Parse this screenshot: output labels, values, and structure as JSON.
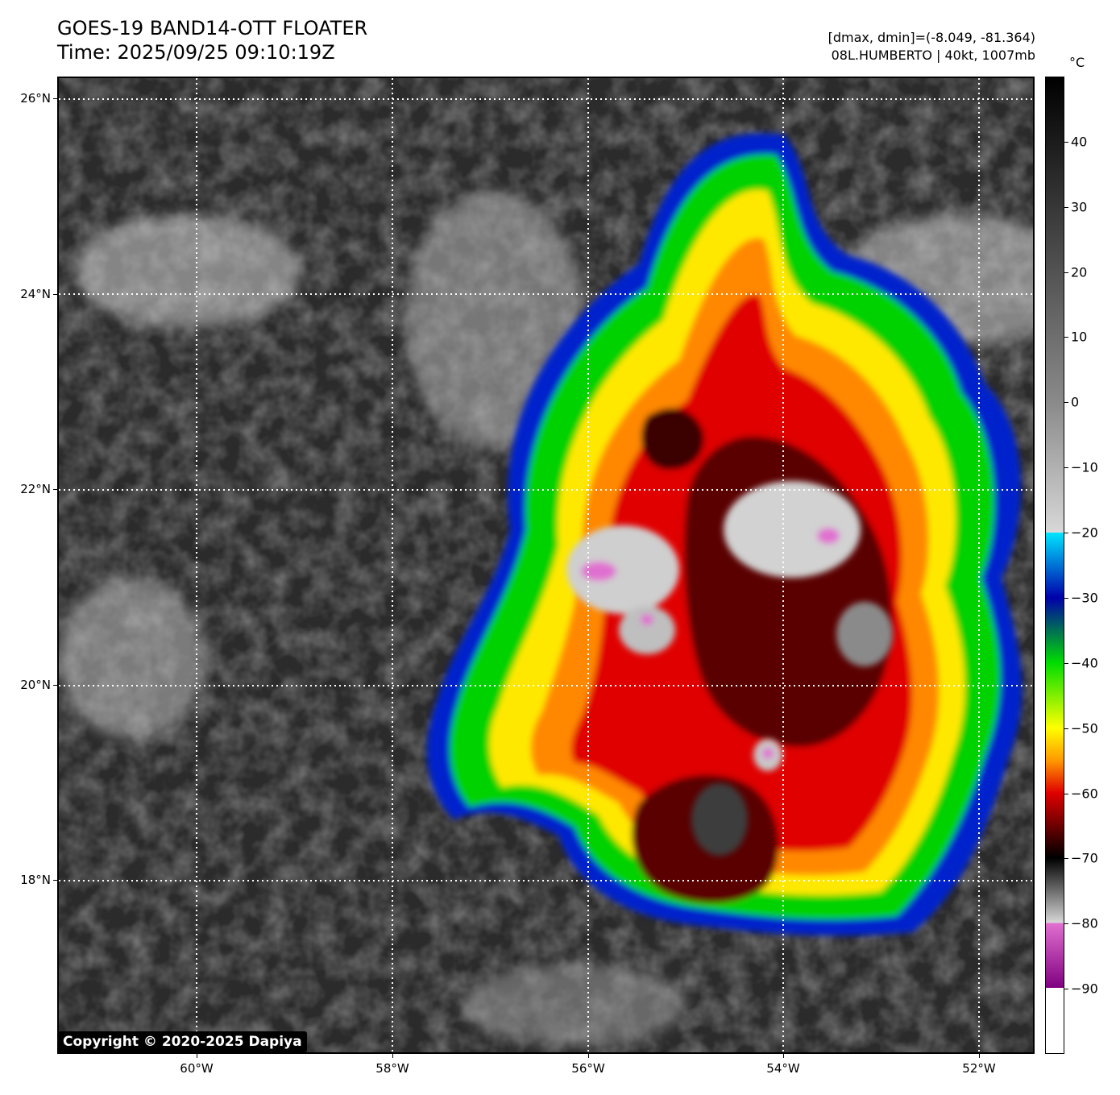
{
  "header": {
    "title_line1": "GOES-19 BAND14-OTT FLOATER",
    "title_line2": "Time: 2025/09/25 09:10:19Z",
    "info_line1": "[dmax, dmin]=(-8.049, -81.364)",
    "info_line2": "08L.HUMBERTO | 40kt, 1007mb"
  },
  "map": {
    "lat_labels": [
      "26°N",
      "24°N",
      "22°N",
      "20°N",
      "18°N"
    ],
    "lon_labels": [
      "60°W",
      "58°W",
      "56°W",
      "54°W",
      "52°W"
    ],
    "lat_extent": [
      16.2,
      26.2
    ],
    "lon_extent": [
      -61.4,
      -51.4
    ],
    "gridlines": "dotted white",
    "storm": "08L.HUMBERTO"
  },
  "copyright": "Copyright © 2020-2025 Dapiya",
  "colorbar": {
    "unit": "°C",
    "ticks": [
      "40",
      "30",
      "20",
      "10",
      "0",
      "−10",
      "−20",
      "−30",
      "−40",
      "−50",
      "−60",
      "−70",
      "−80",
      "−90"
    ],
    "range": [
      -100,
      50
    ],
    "colors": {
      "warm": "#000000",
      "gray_mid": "#8a8a8a",
      "gray_light": "#d8d8d8",
      "cyan": "#00e5ff",
      "blue": "#0000aa",
      "green": "#00dd00",
      "yellow": "#ffff00",
      "orange": "#ff9900",
      "red": "#e00000",
      "dark_red": "#400000",
      "magenta": "#e070d0",
      "purple": "#800080",
      "white": "#ffffff"
    }
  }
}
